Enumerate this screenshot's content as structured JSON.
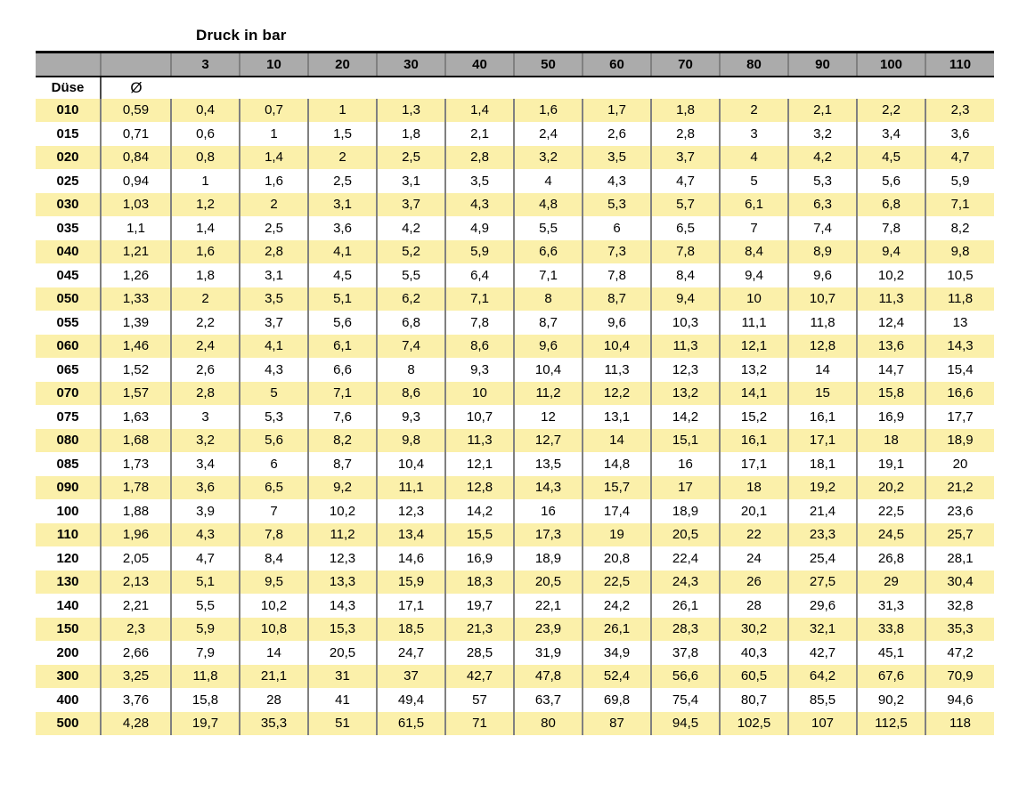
{
  "page": {
    "title": "Druck in bar"
  },
  "colors": {
    "header_bg": "#ABABAB",
    "stripe_yellow": "#FBF0AA",
    "separator": "#808080",
    "border_black": "#000000"
  },
  "table": {
    "corner": {
      "nozzle_column_label": "Düse",
      "diameter_column_label": "Ø"
    },
    "pressure_headers": [
      "3",
      "10",
      "20",
      "30",
      "40",
      "50",
      "60",
      "70",
      "80",
      "90",
      "100",
      "110"
    ],
    "rows": [
      {
        "duese": "010",
        "diameter": "0,59",
        "values": [
          "0,4",
          "0,7",
          "1",
          "1,3",
          "1,4",
          "1,6",
          "1,7",
          "1,8",
          "2",
          "2,1",
          "2,2",
          "2,3"
        ]
      },
      {
        "duese": "015",
        "diameter": "0,71",
        "values": [
          "0,6",
          "1",
          "1,5",
          "1,8",
          "2,1",
          "2,4",
          "2,6",
          "2,8",
          "3",
          "3,2",
          "3,4",
          "3,6"
        ]
      },
      {
        "duese": "020",
        "diameter": "0,84",
        "values": [
          "0,8",
          "1,4",
          "2",
          "2,5",
          "2,8",
          "3,2",
          "3,5",
          "3,7",
          "4",
          "4,2",
          "4,5",
          "4,7"
        ]
      },
      {
        "duese": "025",
        "diameter": "0,94",
        "values": [
          "1",
          "1,6",
          "2,5",
          "3,1",
          "3,5",
          "4",
          "4,3",
          "4,7",
          "5",
          "5,3",
          "5,6",
          "5,9"
        ]
      },
      {
        "duese": "030",
        "diameter": "1,03",
        "values": [
          "1,2",
          "2",
          "3,1",
          "3,7",
          "4,3",
          "4,8",
          "5,3",
          "5,7",
          "6,1",
          "6,3",
          "6,8",
          "7,1"
        ]
      },
      {
        "duese": "035",
        "diameter": "1,1",
        "values": [
          "1,4",
          "2,5",
          "3,6",
          "4,2",
          "4,9",
          "5,5",
          "6",
          "6,5",
          "7",
          "7,4",
          "7,8",
          "8,2"
        ]
      },
      {
        "duese": "040",
        "diameter": "1,21",
        "values": [
          "1,6",
          "2,8",
          "4,1",
          "5,2",
          "5,9",
          "6,6",
          "7,3",
          "7,8",
          "8,4",
          "8,9",
          "9,4",
          "9,8"
        ]
      },
      {
        "duese": "045",
        "diameter": "1,26",
        "values": [
          "1,8",
          "3,1",
          "4,5",
          "5,5",
          "6,4",
          "7,1",
          "7,8",
          "8,4",
          "9,4",
          "9,6",
          "10,2",
          "10,5"
        ]
      },
      {
        "duese": "050",
        "diameter": "1,33",
        "values": [
          "2",
          "3,5",
          "5,1",
          "6,2",
          "7,1",
          "8",
          "8,7",
          "9,4",
          "10",
          "10,7",
          "11,3",
          "11,8"
        ]
      },
      {
        "duese": "055",
        "diameter": "1,39",
        "values": [
          "2,2",
          "3,7",
          "5,6",
          "6,8",
          "7,8",
          "8,7",
          "9,6",
          "10,3",
          "11,1",
          "11,8",
          "12,4",
          "13"
        ]
      },
      {
        "duese": "060",
        "diameter": "1,46",
        "values": [
          "2,4",
          "4,1",
          "6,1",
          "7,4",
          "8,6",
          "9,6",
          "10,4",
          "11,3",
          "12,1",
          "12,8",
          "13,6",
          "14,3"
        ]
      },
      {
        "duese": "065",
        "diameter": "1,52",
        "values": [
          "2,6",
          "4,3",
          "6,6",
          "8",
          "9,3",
          "10,4",
          "11,3",
          "12,3",
          "13,2",
          "14",
          "14,7",
          "15,4"
        ]
      },
      {
        "duese": "070",
        "diameter": "1,57",
        "values": [
          "2,8",
          "5",
          "7,1",
          "8,6",
          "10",
          "11,2",
          "12,2",
          "13,2",
          "14,1",
          "15",
          "15,8",
          "16,6"
        ]
      },
      {
        "duese": "075",
        "diameter": "1,63",
        "values": [
          "3",
          "5,3",
          "7,6",
          "9,3",
          "10,7",
          "12",
          "13,1",
          "14,2",
          "15,2",
          "16,1",
          "16,9",
          "17,7"
        ]
      },
      {
        "duese": "080",
        "diameter": "1,68",
        "values": [
          "3,2",
          "5,6",
          "8,2",
          "9,8",
          "11,3",
          "12,7",
          "14",
          "15,1",
          "16,1",
          "17,1",
          "18",
          "18,9"
        ]
      },
      {
        "duese": "085",
        "diameter": "1,73",
        "values": [
          "3,4",
          "6",
          "8,7",
          "10,4",
          "12,1",
          "13,5",
          "14,8",
          "16",
          "17,1",
          "18,1",
          "19,1",
          "20"
        ]
      },
      {
        "duese": "090",
        "diameter": "1,78",
        "values": [
          "3,6",
          "6,5",
          "9,2",
          "11,1",
          "12,8",
          "14,3",
          "15,7",
          "17",
          "18",
          "19,2",
          "20,2",
          "21,2"
        ]
      },
      {
        "duese": "100",
        "diameter": "1,88",
        "values": [
          "3,9",
          "7",
          "10,2",
          "12,3",
          "14,2",
          "16",
          "17,4",
          "18,9",
          "20,1",
          "21,4",
          "22,5",
          "23,6"
        ]
      },
      {
        "duese": "110",
        "diameter": "1,96",
        "values": [
          "4,3",
          "7,8",
          "11,2",
          "13,4",
          "15,5",
          "17,3",
          "19",
          "20,5",
          "22",
          "23,3",
          "24,5",
          "25,7"
        ]
      },
      {
        "duese": "120",
        "diameter": "2,05",
        "values": [
          "4,7",
          "8,4",
          "12,3",
          "14,6",
          "16,9",
          "18,9",
          "20,8",
          "22,4",
          "24",
          "25,4",
          "26,8",
          "28,1"
        ]
      },
      {
        "duese": "130",
        "diameter": "2,13",
        "values": [
          "5,1",
          "9,5",
          "13,3",
          "15,9",
          "18,3",
          "20,5",
          "22,5",
          "24,3",
          "26",
          "27,5",
          "29",
          "30,4"
        ]
      },
      {
        "duese": "140",
        "diameter": "2,21",
        "values": [
          "5,5",
          "10,2",
          "14,3",
          "17,1",
          "19,7",
          "22,1",
          "24,2",
          "26,1",
          "28",
          "29,6",
          "31,3",
          "32,8"
        ]
      },
      {
        "duese": "150",
        "diameter": "2,3",
        "values": [
          "5,9",
          "10,8",
          "15,3",
          "18,5",
          "21,3",
          "23,9",
          "26,1",
          "28,3",
          "30,2",
          "32,1",
          "33,8",
          "35,3"
        ]
      },
      {
        "duese": "200",
        "diameter": "2,66",
        "values": [
          "7,9",
          "14",
          "20,5",
          "24,7",
          "28,5",
          "31,9",
          "34,9",
          "37,8",
          "40,3",
          "42,7",
          "45,1",
          "47,2"
        ]
      },
      {
        "duese": "300",
        "diameter": "3,25",
        "values": [
          "11,8",
          "21,1",
          "31",
          "37",
          "42,7",
          "47,8",
          "52,4",
          "56,6",
          "60,5",
          "64,2",
          "67,6",
          "70,9"
        ]
      },
      {
        "duese": "400",
        "diameter": "3,76",
        "values": [
          "15,8",
          "28",
          "41",
          "49,4",
          "57",
          "63,7",
          "69,8",
          "75,4",
          "80,7",
          "85,5",
          "90,2",
          "94,6"
        ]
      },
      {
        "duese": "500",
        "diameter": "4,28",
        "values": [
          "19,7",
          "35,3",
          "51",
          "61,5",
          "71",
          "80",
          "87",
          "94,5",
          "102,5",
          "107",
          "112,5",
          "118"
        ]
      }
    ]
  }
}
